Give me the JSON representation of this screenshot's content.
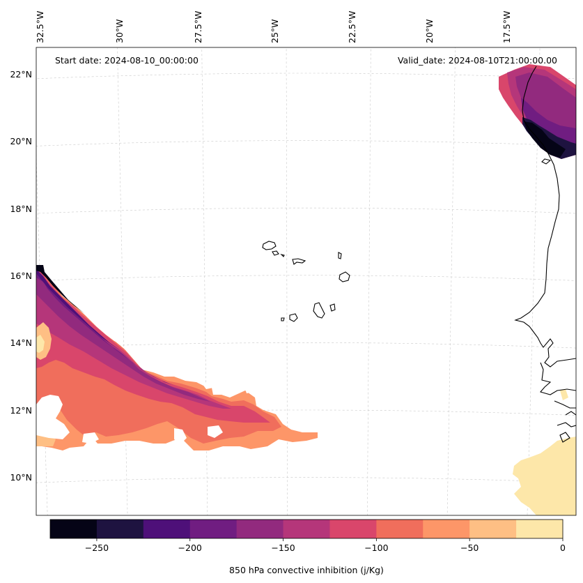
{
  "map": {
    "projection": "lambert-conformal",
    "extent": {
      "lon_min": -32.7,
      "lon_max": -16.0,
      "lat_min": 8.9,
      "lat_max": 22.7
    },
    "start_date_text": "Start date: 2024-08-10_00:00:00",
    "valid_date_text": "Valid_date: 2024-08-10T21:00:00.00",
    "lon_ticks": [
      {
        "lon": -32.5,
        "label": "32.5°W"
      },
      {
        "lon": -30.0,
        "label": "30°W"
      },
      {
        "lon": -27.5,
        "label": "27.5°W"
      },
      {
        "lon": -25.0,
        "label": "25°W"
      },
      {
        "lon": -22.5,
        "label": "22.5°W"
      },
      {
        "lon": -20.0,
        "label": "20°W"
      },
      {
        "lon": -17.5,
        "label": "17.5°W"
      }
    ],
    "lat_ticks": [
      {
        "lat": 22,
        "label": "22°N"
      },
      {
        "lat": 20,
        "label": "20°N"
      },
      {
        "lat": 18,
        "label": "18°N"
      },
      {
        "lat": 16,
        "label": "16°N"
      },
      {
        "lat": 14,
        "label": "14°N"
      },
      {
        "lat": 12,
        "label": "12°N"
      },
      {
        "lat": 10,
        "label": "10°N"
      }
    ],
    "features": [
      "cape-verde-islands",
      "west-africa-coastline"
    ]
  },
  "chart_data": {
    "type": "heatmap",
    "title": "",
    "variable": "850 hPa convective inhibition",
    "units": "j/Kg",
    "colorbar_label": "850 hPa convective inhibition (j/Kg)",
    "levels": [
      -275,
      -250,
      -225,
      -200,
      -175,
      -150,
      -125,
      -100,
      -75,
      -50,
      -25,
      0
    ],
    "colors": [
      "#050416",
      "#1e1340",
      "#4e1079",
      "#701d81",
      "#922a7e",
      "#b5367a",
      "#d9466b",
      "#f06e5c",
      "#fd9668",
      "#febf84",
      "#fde7a9"
    ],
    "colorbar_ticks": [
      {
        "value": -250,
        "label": "−250"
      },
      {
        "value": -200,
        "label": "−200"
      },
      {
        "value": -150,
        "label": "−150"
      },
      {
        "value": -100,
        "label": "−100"
      },
      {
        "value": -50,
        "label": "−50"
      },
      {
        "value": 0,
        "label": "0"
      }
    ],
    "regions": [
      {
        "name": "southwest-band",
        "lon_range": [
          -32.7,
          -23.4
        ],
        "lat_range": [
          10.9,
          16.3
        ],
        "min_value": -275,
        "max_value": 0
      },
      {
        "name": "northeast-mauritania-coast",
        "lon_range": [
          -18.2,
          -16.0
        ],
        "lat_range": [
          19.6,
          22.0
        ],
        "min_value": -275,
        "max_value": -75
      },
      {
        "name": "southeast-guinea-coast",
        "lon_range": [
          -18.4,
          -16.0
        ],
        "lat_range": [
          8.9,
          11.2
        ],
        "min_value": -25,
        "max_value": 0
      }
    ]
  }
}
